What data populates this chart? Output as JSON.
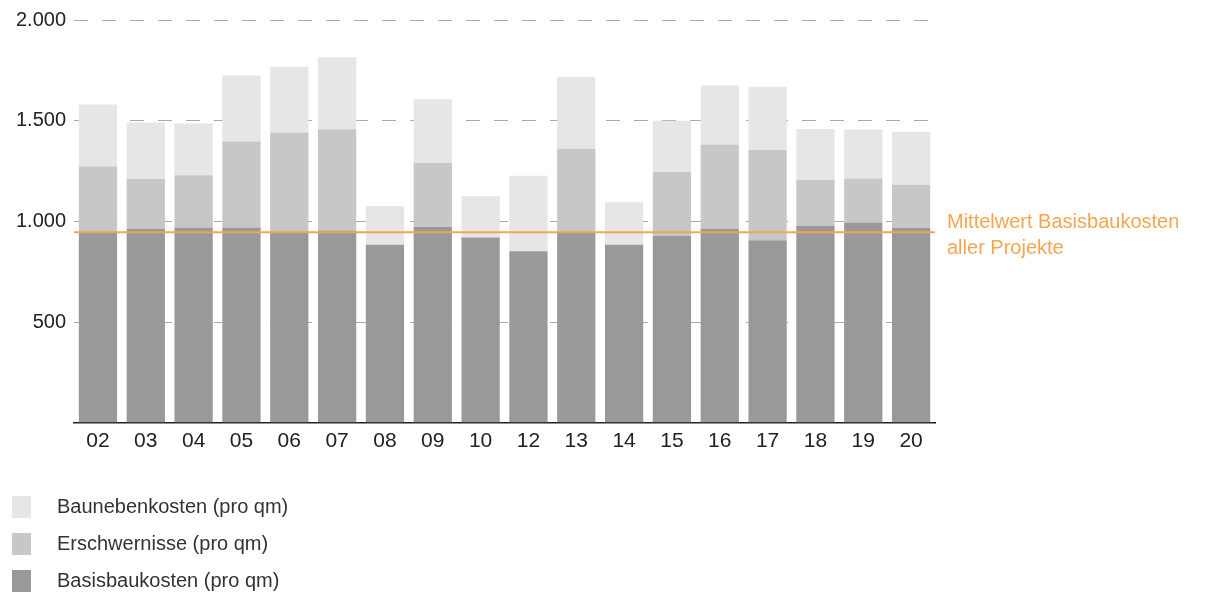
{
  "chart_data": {
    "type": "bar",
    "stacked": true,
    "categories": [
      "02",
      "03",
      "04",
      "05",
      "06",
      "07",
      "08",
      "09",
      "10",
      "12",
      "13",
      "14",
      "15",
      "16",
      "17",
      "18",
      "19",
      "20"
    ],
    "series": [
      {
        "name": "Basisbaukosten (pro qm)",
        "color": "#999999",
        "values": [
          950,
          964,
          970,
          970,
          950,
          955,
          884,
          972,
          920,
          852,
          948,
          884,
          927,
          964,
          907,
          977,
          995,
          968
        ]
      },
      {
        "name": "Erschwernisse (pro qm)",
        "color": "#c6c7c9",
        "values": [
          323,
          247,
          259,
          427,
          491,
          502,
          0,
          319,
          0,
          0,
          413,
          0,
          318,
          418,
          448,
          228,
          218,
          214
        ]
      },
      {
        "name": "Baunebenkosten (pro qm)",
        "color": "#e6e6e6",
        "values": [
          307,
          280,
          257,
          327,
          327,
          358,
          193,
          316,
          205,
          375,
          357,
          211,
          255,
          293,
          313,
          254,
          243,
          263
        ]
      }
    ],
    "ylim": [
      0,
      2000
    ],
    "yticks": [
      {
        "value": 0,
        "label": null
      },
      500,
      {
        "value": 1000,
        "label": "1.000"
      },
      {
        "value": 1500,
        "label": "1.500"
      },
      {
        "value": 2000,
        "label": "2.000"
      }
    ],
    "grid": "y",
    "legend": "bottom left",
    "ref_lines": [
      {
        "axis": "y",
        "value": 946,
        "label": "Mittelwert Basisbaukosten aller Projekte",
        "color": "#f5a550"
      }
    ]
  }
}
